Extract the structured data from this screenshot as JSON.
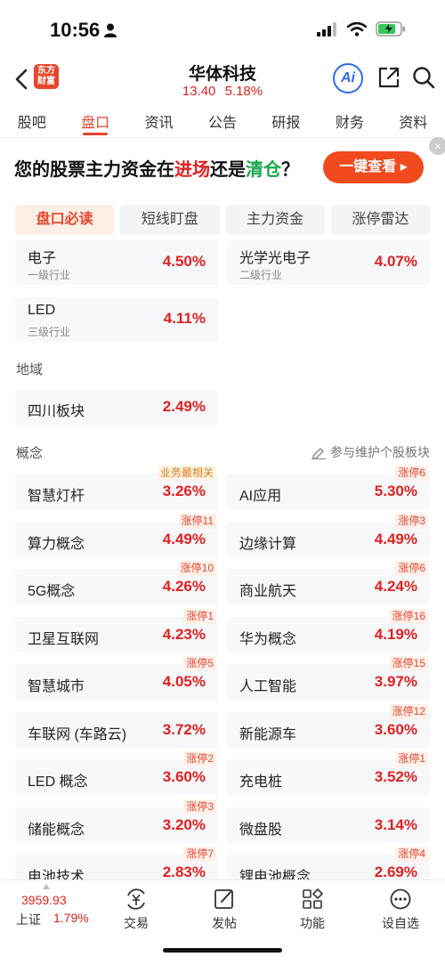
{
  "status_bar": {
    "time": "10:56",
    "battery_color": "#34c759"
  },
  "header": {
    "logo_text": "东方财富",
    "stock_name": "华体科技",
    "price": "13.40",
    "change_pct": "5.18%",
    "ai_label": "Ai"
  },
  "tabs": [
    {
      "label": "股吧",
      "active": false
    },
    {
      "label": "盘口",
      "active": true
    },
    {
      "label": "资讯",
      "active": false
    },
    {
      "label": "公告",
      "active": false
    },
    {
      "label": "研报",
      "active": false
    },
    {
      "label": "财务",
      "active": false
    },
    {
      "label": "资料",
      "active": false
    }
  ],
  "banner": {
    "text_prefix": "您的股票主力资金在",
    "text_red": "进场",
    "text_mid": "还是",
    "text_green": "清仓",
    "text_suffix": "？",
    "button": "一键查看 ▸",
    "close": "×"
  },
  "subtabs": [
    {
      "label": "盘口必读",
      "active": true
    },
    {
      "label": "短线盯盘",
      "active": false
    },
    {
      "label": "主力资金",
      "active": false
    },
    {
      "label": "涨停雷达",
      "active": false
    }
  ],
  "industry": [
    {
      "name": "电子",
      "sub": "一级行业",
      "value": "4.50%"
    },
    {
      "name": "光学光电子",
      "sub": "二级行业",
      "value": "4.07%"
    },
    {
      "name": "LED",
      "sub": "三级行业",
      "value": "4.11%"
    }
  ],
  "region": {
    "label": "地域",
    "items": [
      {
        "name": "四川板块",
        "value": "2.49%"
      }
    ]
  },
  "concept": {
    "label": "概念",
    "maintain": "参与维护个股板块",
    "items": [
      {
        "name": "智慧灯杆",
        "value": "3.26%",
        "tag": "业务最相关"
      },
      {
        "name": "AI应用",
        "value": "5.30%",
        "tag": "涨停6"
      },
      {
        "name": "算力概念",
        "value": "4.49%",
        "tag": "涨停11"
      },
      {
        "name": "边缘计算",
        "value": "4.49%",
        "tag": "涨停3"
      },
      {
        "name": "5G概念",
        "value": "4.26%",
        "tag": "涨停10"
      },
      {
        "name": "商业航天",
        "value": "4.24%",
        "tag": "涨停6"
      },
      {
        "name": "卫星互联网",
        "value": "4.23%",
        "tag": "涨停1"
      },
      {
        "name": "华为概念",
        "value": "4.19%",
        "tag": "涨停16"
      },
      {
        "name": "智慧城市",
        "value": "4.05%",
        "tag": "涨停5"
      },
      {
        "name": "人工智能",
        "value": "3.97%",
        "tag": "涨停15"
      },
      {
        "name": "车联网 (车路云)",
        "value": "3.72%",
        "tag": ""
      },
      {
        "name": "新能源车",
        "value": "3.60%",
        "tag": "涨停12"
      },
      {
        "name": "LED 概念",
        "value": "3.60%",
        "tag": "涨停2"
      },
      {
        "name": "充电桩",
        "value": "3.52%",
        "tag": "涨停1"
      },
      {
        "name": "储能概念",
        "value": "3.20%",
        "tag": "涨停3"
      },
      {
        "name": "微盘股",
        "value": "3.14%",
        "tag": ""
      },
      {
        "name": "电池技术",
        "value": "2.83%",
        "tag": "涨停7"
      },
      {
        "name": "锂电池概念",
        "value": "2.69%",
        "tag": "涨停4"
      }
    ]
  },
  "bottom_bar": {
    "index_value": "3959.93",
    "index_name": "上证",
    "index_pct": "1.79%",
    "nav": [
      {
        "label": "交易",
        "icon": "yuan-exchange-icon"
      },
      {
        "label": "发帖",
        "icon": "edit-post-icon"
      },
      {
        "label": "功能",
        "icon": "grid-functions-icon"
      },
      {
        "label": "设自选",
        "icon": "more-dots-icon"
      }
    ]
  },
  "colors": {
    "accent": "#e8452c",
    "up_red": "#e02020",
    "green": "#1aa64a",
    "ai_blue": "#2c6be6"
  }
}
